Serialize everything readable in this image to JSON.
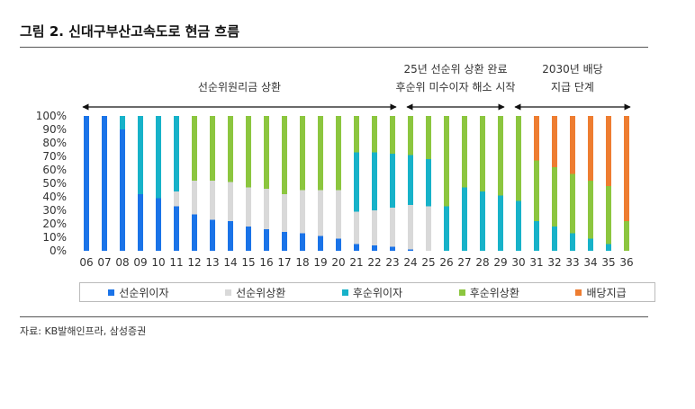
{
  "figure": {
    "title": "그림 2. 신대구부산고속도로 현금 흐름",
    "source": "자료: KB발해인프라, 삼성증권"
  },
  "chart_data": {
    "type": "bar",
    "stacked": true,
    "categories": [
      "06",
      "07",
      "08",
      "09",
      "10",
      "11",
      "12",
      "13",
      "14",
      "15",
      "16",
      "17",
      "18",
      "19",
      "20",
      "21",
      "22",
      "23",
      "24",
      "25",
      "26",
      "27",
      "28",
      "29",
      "30",
      "31",
      "32",
      "33",
      "34",
      "35",
      "36"
    ],
    "ylim": [
      0,
      100
    ],
    "y_ticks": [
      "0%",
      "10%",
      "20%",
      "30%",
      "40%",
      "50%",
      "60%",
      "70%",
      "80%",
      "90%",
      "100%"
    ],
    "series": [
      {
        "name": "선순위이자",
        "color": "#1a73e8",
        "values": [
          100,
          100,
          90,
          42,
          39,
          33,
          27,
          23,
          22,
          18,
          16,
          14,
          13,
          11,
          9,
          5,
          4,
          3,
          1,
          0,
          0,
          0,
          0,
          0,
          0,
          0,
          0,
          0,
          0,
          0,
          0
        ]
      },
      {
        "name": "선순위상환",
        "color": "#d9d9d9",
        "values": [
          0,
          0,
          0,
          0,
          0,
          11,
          25,
          29,
          29,
          29,
          30,
          28,
          32,
          34,
          36,
          24,
          26,
          29,
          33,
          33,
          0,
          0,
          0,
          0,
          0,
          0,
          0,
          0,
          0,
          0,
          0
        ]
      },
      {
        "name": "후순위이자",
        "color": "#17b2c9",
        "values": [
          0,
          0,
          10,
          58,
          61,
          56,
          0,
          0,
          0,
          0,
          0,
          0,
          0,
          0,
          0,
          44,
          43,
          40,
          37,
          35,
          33,
          47,
          44,
          41,
          37,
          22,
          18,
          13,
          9,
          5,
          0
        ]
      },
      {
        "name": "후순위상환",
        "color": "#8cc63f",
        "values": [
          0,
          0,
          0,
          0,
          0,
          0,
          48,
          48,
          49,
          53,
          54,
          58,
          55,
          55,
          55,
          27,
          27,
          28,
          29,
          32,
          67,
          53,
          56,
          59,
          63,
          45,
          44,
          44,
          43,
          43,
          22
        ]
      },
      {
        "name": "배당지급",
        "color": "#ee7d31",
        "values": [
          0,
          0,
          0,
          0,
          0,
          0,
          0,
          0,
          0,
          0,
          0,
          0,
          0,
          0,
          0,
          0,
          0,
          0,
          0,
          0,
          0,
          0,
          0,
          0,
          0,
          33,
          38,
          43,
          48,
          52,
          78
        ]
      }
    ],
    "annotations": [
      {
        "lines": [
          "선순위원리금 상환"
        ],
        "from": "06",
        "to": "23"
      },
      {
        "lines": [
          "25년 선순위 상환 완료",
          "후순위 미수이자 해소 시작"
        ],
        "from": "24",
        "to": "29"
      },
      {
        "lines": [
          "2030년 배당",
          "지급 단계"
        ],
        "from": "30",
        "to": "36"
      }
    ],
    "legend_position": "bottom",
    "grid": false
  }
}
